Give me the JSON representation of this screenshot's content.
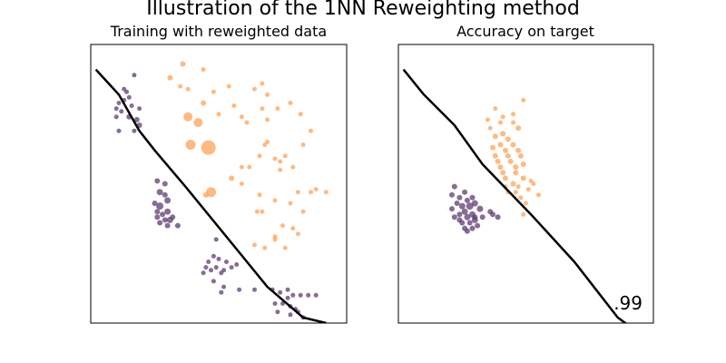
{
  "figure": {
    "suptitle": "Illustration of the 1NN Reweighting method",
    "colors": {
      "source": "#fda35a",
      "target": "#5e3c72",
      "boundary": "#000000"
    }
  },
  "chart_data": [
    {
      "type": "scatter",
      "title": "Training with reweighted data",
      "xlabel": "",
      "ylabel": "",
      "xlim": [
        0,
        1
      ],
      "ylim": [
        0,
        1
      ],
      "ticks": false,
      "grid": false,
      "boundary": [
        [
          0.02,
          0.91
        ],
        [
          0.11,
          0.82
        ],
        [
          0.19,
          0.69
        ],
        [
          0.25,
          0.62
        ],
        [
          0.37,
          0.49
        ],
        [
          0.53,
          0.31
        ],
        [
          0.69,
          0.13
        ],
        [
          0.83,
          0.02
        ],
        [
          0.92,
          0.0
        ]
      ],
      "series": [
        {
          "color": "#fda35a",
          "points": [
            [
              0.36,
              0.93,
              6
            ],
            [
              0.44,
              0.91,
              5
            ],
            [
              0.31,
              0.88,
              6
            ],
            [
              0.35,
              0.85,
              5
            ],
            [
              0.38,
              0.84,
              5
            ],
            [
              0.48,
              0.83,
              5
            ],
            [
              0.54,
              0.85,
              5
            ],
            [
              0.64,
              0.84,
              5
            ],
            [
              0.67,
              0.86,
              5
            ],
            [
              0.69,
              0.82,
              5
            ],
            [
              0.73,
              0.77,
              5
            ],
            [
              0.78,
              0.79,
              5
            ],
            [
              0.44,
              0.79,
              6
            ],
            [
              0.5,
              0.75,
              5
            ],
            [
              0.56,
              0.78,
              5
            ],
            [
              0.59,
              0.74,
              5
            ],
            [
              0.61,
              0.72,
              5
            ],
            [
              0.67,
              0.77,
              5
            ],
            [
              0.69,
              0.73,
              5
            ],
            [
              0.82,
              0.75,
              5
            ],
            [
              0.86,
              0.69,
              5
            ],
            [
              0.83,
              0.64,
              5
            ],
            [
              0.74,
              0.58,
              5
            ],
            [
              0.79,
              0.56,
              5
            ],
            [
              0.69,
              0.65,
              5
            ],
            [
              0.72,
              0.59,
              5
            ],
            [
              0.76,
              0.6,
              5
            ],
            [
              0.68,
              0.64,
              5
            ],
            [
              0.66,
              0.6,
              5
            ],
            [
              0.74,
              0.55,
              5
            ],
            [
              0.81,
              0.47,
              5
            ],
            [
              0.86,
              0.47,
              5
            ],
            [
              0.88,
              0.48,
              5
            ],
            [
              0.92,
              0.47,
              5
            ],
            [
              0.78,
              0.43,
              5
            ],
            [
              0.83,
              0.4,
              5
            ],
            [
              0.66,
              0.46,
              5
            ],
            [
              0.72,
              0.44,
              5
            ],
            [
              0.67,
              0.4,
              5
            ],
            [
              0.65,
              0.4,
              5
            ],
            [
              0.75,
              0.35,
              5
            ],
            [
              0.79,
              0.34,
              5
            ],
            [
              0.81,
              0.32,
              5
            ],
            [
              0.72,
              0.3,
              5
            ],
            [
              0.76,
              0.27,
              5
            ],
            [
              0.72,
              0.31,
              5
            ],
            [
              0.64,
              0.28,
              5
            ],
            [
              0.68,
              0.27,
              5
            ],
            [
              0.59,
              0.56,
              5
            ],
            [
              0.62,
              0.56,
              5
            ],
            [
              0.55,
              0.52,
              6
            ],
            [
              0.59,
              0.5,
              5
            ],
            [
              0.38,
              0.74,
              10
            ],
            [
              0.42,
              0.72,
              10
            ],
            [
              0.39,
              0.64,
              11
            ],
            [
              0.46,
              0.63,
              16
            ],
            [
              0.47,
              0.47,
              11
            ],
            [
              0.45,
              0.46,
              6
            ]
          ]
        },
        {
          "color": "#5e3c72",
          "points": [
            [
              0.17,
              0.89,
              5
            ],
            [
              0.13,
              0.84,
              5
            ],
            [
              0.14,
              0.83,
              5
            ],
            [
              0.15,
              0.81,
              5
            ],
            [
              0.13,
              0.8,
              5
            ],
            [
              0.16,
              0.78,
              5
            ],
            [
              0.19,
              0.77,
              5
            ],
            [
              0.11,
              0.79,
              5
            ],
            [
              0.12,
              0.76,
              5
            ],
            [
              0.1,
              0.77,
              5
            ],
            [
              0.1,
              0.74,
              5
            ],
            [
              0.15,
              0.74,
              6
            ],
            [
              0.18,
              0.73,
              6
            ],
            [
              0.19,
              0.71,
              6
            ],
            [
              0.11,
              0.69,
              5
            ],
            [
              0.17,
              0.69,
              5
            ],
            [
              0.26,
              0.51,
              6
            ],
            [
              0.29,
              0.5,
              6
            ],
            [
              0.27,
              0.47,
              7
            ],
            [
              0.29,
              0.46,
              6
            ],
            [
              0.3,
              0.44,
              7
            ],
            [
              0.27,
              0.42,
              8
            ],
            [
              0.25,
              0.43,
              6
            ],
            [
              0.26,
              0.4,
              6
            ],
            [
              0.28,
              0.39,
              6
            ],
            [
              0.3,
              0.4,
              7
            ],
            [
              0.29,
              0.37,
              6
            ],
            [
              0.31,
              0.37,
              7
            ],
            [
              0.27,
              0.36,
              6
            ],
            [
              0.3,
              0.35,
              6
            ],
            [
              0.34,
              0.35,
              6
            ],
            [
              0.26,
              0.38,
              6
            ],
            [
              0.32,
              0.38,
              6
            ],
            [
              0.49,
              0.3,
              5
            ],
            [
              0.48,
              0.24,
              5
            ],
            [
              0.46,
              0.22,
              5
            ],
            [
              0.5,
              0.23,
              5
            ],
            [
              0.53,
              0.22,
              5
            ],
            [
              0.45,
              0.2,
              5
            ],
            [
              0.47,
              0.19,
              5
            ],
            [
              0.49,
              0.2,
              5
            ],
            [
              0.52,
              0.19,
              5
            ],
            [
              0.55,
              0.2,
              5
            ],
            [
              0.57,
              0.21,
              5
            ],
            [
              0.44,
              0.18,
              5
            ],
            [
              0.51,
              0.18,
              5
            ],
            [
              0.48,
              0.15,
              5
            ],
            [
              0.52,
              0.13,
              5
            ],
            [
              0.58,
              0.12,
              5
            ],
            [
              0.51,
              0.11,
              5
            ],
            [
              0.64,
              0.12,
              5
            ],
            [
              0.71,
              0.12,
              5
            ],
            [
              0.74,
              0.11,
              5
            ],
            [
              0.77,
              0.12,
              5
            ],
            [
              0.79,
              0.1,
              5
            ],
            [
              0.82,
              0.1,
              5
            ],
            [
              0.85,
              0.1,
              5
            ],
            [
              0.88,
              0.1,
              5
            ],
            [
              0.72,
              0.07,
              5
            ],
            [
              0.75,
              0.07,
              5
            ],
            [
              0.78,
              0.06,
              5
            ],
            [
              0.8,
              0.05,
              5
            ],
            [
              0.73,
              0.04,
              5
            ],
            [
              0.78,
              0.03,
              5
            ],
            [
              0.81,
              0.04,
              5
            ],
            [
              0.83,
              0.02,
              5
            ],
            [
              0.77,
              0.09,
              5
            ]
          ]
        }
      ]
    },
    {
      "type": "scatter",
      "title": "Accuracy on target",
      "score": ".99",
      "xlabel": "",
      "ylabel": "",
      "xlim": [
        0,
        1
      ],
      "ylim": [
        0,
        1
      ],
      "ticks": false,
      "grid": false,
      "boundary": [
        [
          0.02,
          0.91
        ],
        [
          0.1,
          0.82
        ],
        [
          0.22,
          0.71
        ],
        [
          0.33,
          0.57
        ],
        [
          0.53,
          0.38
        ],
        [
          0.69,
          0.22
        ],
        [
          0.86,
          0.02
        ],
        [
          0.92,
          -0.02
        ]
      ],
      "series": [
        {
          "color": "#fda35a",
          "points": [
            [
              0.38,
              0.77,
              5
            ],
            [
              0.45,
              0.75,
              5
            ],
            [
              0.49,
              0.8,
              5
            ],
            [
              0.41,
              0.74,
              5
            ],
            [
              0.35,
              0.73,
              5
            ],
            [
              0.4,
              0.72,
              5
            ],
            [
              0.45,
              0.72,
              5
            ],
            [
              0.36,
              0.7,
              5
            ],
            [
              0.41,
              0.68,
              6
            ],
            [
              0.47,
              0.7,
              6
            ],
            [
              0.38,
              0.67,
              6
            ],
            [
              0.43,
              0.66,
              6
            ],
            [
              0.4,
              0.64,
              6
            ],
            [
              0.45,
              0.64,
              6
            ],
            [
              0.37,
              0.63,
              6
            ],
            [
              0.42,
              0.62,
              6
            ],
            [
              0.47,
              0.62,
              6
            ],
            [
              0.38,
              0.6,
              6
            ],
            [
              0.43,
              0.6,
              6
            ],
            [
              0.48,
              0.6,
              6
            ],
            [
              0.39,
              0.58,
              6
            ],
            [
              0.44,
              0.58,
              6
            ],
            [
              0.4,
              0.56,
              6
            ],
            [
              0.46,
              0.56,
              6
            ],
            [
              0.49,
              0.57,
              6
            ],
            [
              0.41,
              0.54,
              6
            ],
            [
              0.46,
              0.54,
              6
            ],
            [
              0.42,
              0.52,
              6
            ],
            [
              0.45,
              0.5,
              6
            ],
            [
              0.49,
              0.52,
              6
            ],
            [
              0.42,
              0.49,
              5
            ],
            [
              0.52,
              0.51,
              5
            ],
            [
              0.47,
              0.49,
              5
            ],
            [
              0.46,
              0.47,
              5
            ],
            [
              0.51,
              0.48,
              5
            ],
            [
              0.53,
              0.5,
              5
            ],
            [
              0.48,
              0.45,
              5
            ],
            [
              0.55,
              0.46,
              5
            ],
            [
              0.5,
              0.43,
              5
            ],
            [
              0.43,
              0.47,
              5
            ],
            [
              0.49,
              0.39,
              5
            ]
          ]
        },
        {
          "color": "#5e3c72",
          "points": [
            [
              0.22,
              0.49,
              6
            ],
            [
              0.26,
              0.47,
              6
            ],
            [
              0.21,
              0.46,
              6
            ],
            [
              0.24,
              0.45,
              6
            ],
            [
              0.27,
              0.44,
              6
            ],
            [
              0.29,
              0.45,
              6
            ],
            [
              0.23,
              0.43,
              6
            ],
            [
              0.25,
              0.42,
              7
            ],
            [
              0.28,
              0.42,
              8
            ],
            [
              0.3,
              0.43,
              7
            ],
            [
              0.21,
              0.41,
              6
            ],
            [
              0.26,
              0.4,
              7
            ],
            [
              0.29,
              0.39,
              7
            ],
            [
              0.32,
              0.41,
              7
            ],
            [
              0.24,
              0.39,
              6
            ],
            [
              0.27,
              0.38,
              7
            ],
            [
              0.3,
              0.37,
              7
            ],
            [
              0.33,
              0.38,
              6
            ],
            [
              0.25,
              0.36,
              6
            ],
            [
              0.28,
              0.36,
              6
            ],
            [
              0.36,
              0.4,
              6
            ],
            [
              0.37,
              0.39,
              6
            ],
            [
              0.26,
              0.34,
              6
            ],
            [
              0.29,
              0.34,
              6
            ],
            [
              0.39,
              0.38,
              6
            ],
            [
              0.3,
              0.38,
              6
            ],
            [
              0.31,
              0.35,
              6
            ],
            [
              0.27,
              0.33,
              6
            ],
            [
              0.24,
              0.37,
              6
            ],
            [
              0.22,
              0.38,
              6
            ]
          ]
        }
      ]
    }
  ]
}
